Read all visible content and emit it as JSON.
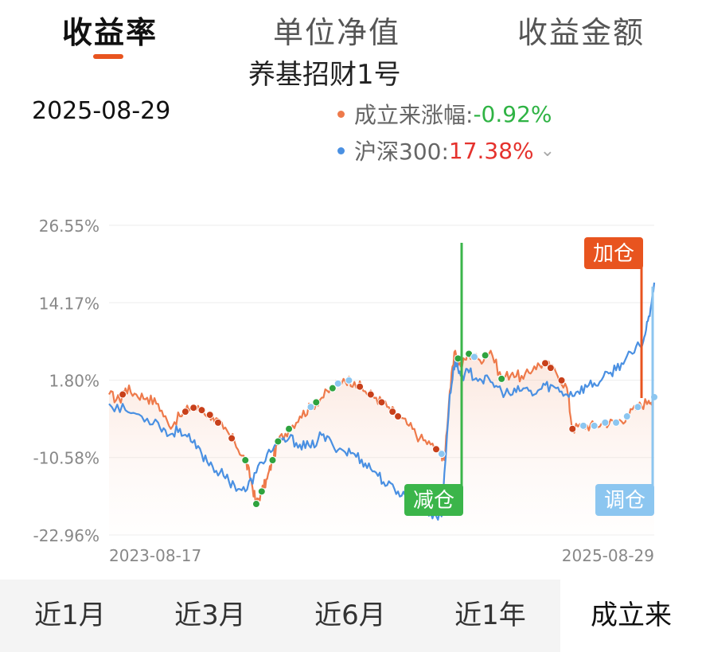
{
  "tabs": [
    {
      "label": "收益率",
      "active": true
    },
    {
      "label": "单位净值",
      "active": false
    },
    {
      "label": "收益金额",
      "active": false
    }
  ],
  "fund_name": "养基招财1号",
  "selected_date": "2025-08-29",
  "legend": {
    "fund": {
      "name": "成立来涨幅:",
      "value": "-0.92%",
      "color": "#ee7a4b"
    },
    "index": {
      "name": "沪深300:",
      "value": "17.38%",
      "color": "#4a90e2"
    },
    "expand_icon": "chevron-down-icon"
  },
  "chart_data": {
    "type": "line",
    "ylim": [
      -22.96,
      26.55
    ],
    "y_ticks": [
      "26.55%",
      "14.17%",
      "1.80%",
      "-10.58%",
      "-22.96%"
    ],
    "x_start": "2023-08-17",
    "x_end": "2025-08-29",
    "series": [
      {
        "name": "成立来涨幅",
        "color": "#ee7a4b",
        "points": [
          [
            0,
            -0.5
          ],
          [
            0.02,
            -1.5
          ],
          [
            0.03,
            0.5
          ],
          [
            0.05,
            -0.5
          ],
          [
            0.07,
            -1.0
          ],
          [
            0.09,
            -2.0
          ],
          [
            0.11,
            -5.5
          ],
          [
            0.13,
            -4.0
          ],
          [
            0.15,
            -2.5
          ],
          [
            0.17,
            -3.0
          ],
          [
            0.19,
            -4.0
          ],
          [
            0.21,
            -6.0
          ],
          [
            0.23,
            -8.0
          ],
          [
            0.25,
            -11.0
          ],
          [
            0.26,
            -14.0
          ],
          [
            0.27,
            -18.0
          ],
          [
            0.28,
            -16.0
          ],
          [
            0.29,
            -14.0
          ],
          [
            0.3,
            -11.0
          ],
          [
            0.31,
            -8.0
          ],
          [
            0.33,
            -6.0
          ],
          [
            0.35,
            -4.0
          ],
          [
            0.37,
            -2.5
          ],
          [
            0.39,
            -1.0
          ],
          [
            0.41,
            0.5
          ],
          [
            0.43,
            2.0
          ],
          [
            0.45,
            1.5
          ],
          [
            0.47,
            0.0
          ],
          [
            0.49,
            -1.0
          ],
          [
            0.51,
            -2.5
          ],
          [
            0.53,
            -4.0
          ],
          [
            0.55,
            -5.5
          ],
          [
            0.57,
            -7.5
          ],
          [
            0.59,
            -8.5
          ],
          [
            0.61,
            -10.0
          ],
          [
            0.615,
            -11.0
          ],
          [
            0.625,
            0.0
          ],
          [
            0.635,
            6.5
          ],
          [
            0.645,
            4.0
          ],
          [
            0.66,
            6.0
          ],
          [
            0.68,
            5.0
          ],
          [
            0.7,
            6.5
          ],
          [
            0.72,
            2.0
          ],
          [
            0.74,
            3.0
          ],
          [
            0.76,
            2.0
          ],
          [
            0.78,
            4.0
          ],
          [
            0.8,
            4.5
          ],
          [
            0.82,
            3.0
          ],
          [
            0.84,
            0.5
          ],
          [
            0.85,
            -6.0
          ],
          [
            0.87,
            -5.5
          ],
          [
            0.89,
            -5.5
          ],
          [
            0.91,
            -5.0
          ],
          [
            0.93,
            -5.0
          ],
          [
            0.95,
            -4.0
          ],
          [
            0.97,
            -2.5
          ],
          [
            0.99,
            -1.5
          ],
          [
            1.0,
            -0.92
          ]
        ]
      },
      {
        "name": "沪深300",
        "color": "#4a90e2",
        "points": [
          [
            0,
            -2.0
          ],
          [
            0.03,
            -3.0
          ],
          [
            0.06,
            -4.0
          ],
          [
            0.09,
            -5.0
          ],
          [
            0.11,
            -7.0
          ],
          [
            0.13,
            -6.0
          ],
          [
            0.15,
            -8.0
          ],
          [
            0.17,
            -10.0
          ],
          [
            0.19,
            -12.0
          ],
          [
            0.21,
            -13.5
          ],
          [
            0.23,
            -15.0
          ],
          [
            0.25,
            -16.0
          ],
          [
            0.27,
            -13.0
          ],
          [
            0.29,
            -10.0
          ],
          [
            0.31,
            -8.5
          ],
          [
            0.33,
            -7.5
          ],
          [
            0.35,
            -8.5
          ],
          [
            0.37,
            -9.0
          ],
          [
            0.39,
            -7.0
          ],
          [
            0.41,
            -8.5
          ],
          [
            0.43,
            -9.5
          ],
          [
            0.45,
            -10.0
          ],
          [
            0.47,
            -11.5
          ],
          [
            0.49,
            -13.0
          ],
          [
            0.51,
            -15.0
          ],
          [
            0.53,
            -16.0
          ],
          [
            0.55,
            -17.0
          ],
          [
            0.57,
            -18.5
          ],
          [
            0.59,
            -19.5
          ],
          [
            0.61,
            -20.0
          ],
          [
            0.625,
            -0.5
          ],
          [
            0.635,
            5.0
          ],
          [
            0.645,
            2.5
          ],
          [
            0.66,
            3.0
          ],
          [
            0.68,
            2.0
          ],
          [
            0.7,
            1.5
          ],
          [
            0.72,
            0.0
          ],
          [
            0.74,
            -0.5
          ],
          [
            0.76,
            0.5
          ],
          [
            0.78,
            -0.5
          ],
          [
            0.8,
            1.0
          ],
          [
            0.82,
            0.5
          ],
          [
            0.84,
            -0.5
          ],
          [
            0.86,
            0.0
          ],
          [
            0.88,
            1.0
          ],
          [
            0.9,
            1.5
          ],
          [
            0.92,
            3.0
          ],
          [
            0.94,
            4.5
          ],
          [
            0.96,
            6.0
          ],
          [
            0.98,
            8.0
          ],
          [
            0.99,
            12.0
          ],
          [
            1.0,
            17.38
          ]
        ]
      }
    ],
    "trade_markers": [
      {
        "label": "加仓",
        "x": 0.986,
        "color": "#e8541f"
      },
      {
        "label": "减仓",
        "x": 0.62,
        "color": "#3bb54a"
      },
      {
        "label": "调仓",
        "x": 0.99,
        "color": "#8cc6f0"
      }
    ],
    "grid": true
  },
  "periods": [
    {
      "label": "近1月",
      "active": false
    },
    {
      "label": "近3月",
      "active": false
    },
    {
      "label": "近6月",
      "active": false
    },
    {
      "label": "近1年",
      "active": false
    },
    {
      "label": "成立来",
      "active": true
    }
  ]
}
